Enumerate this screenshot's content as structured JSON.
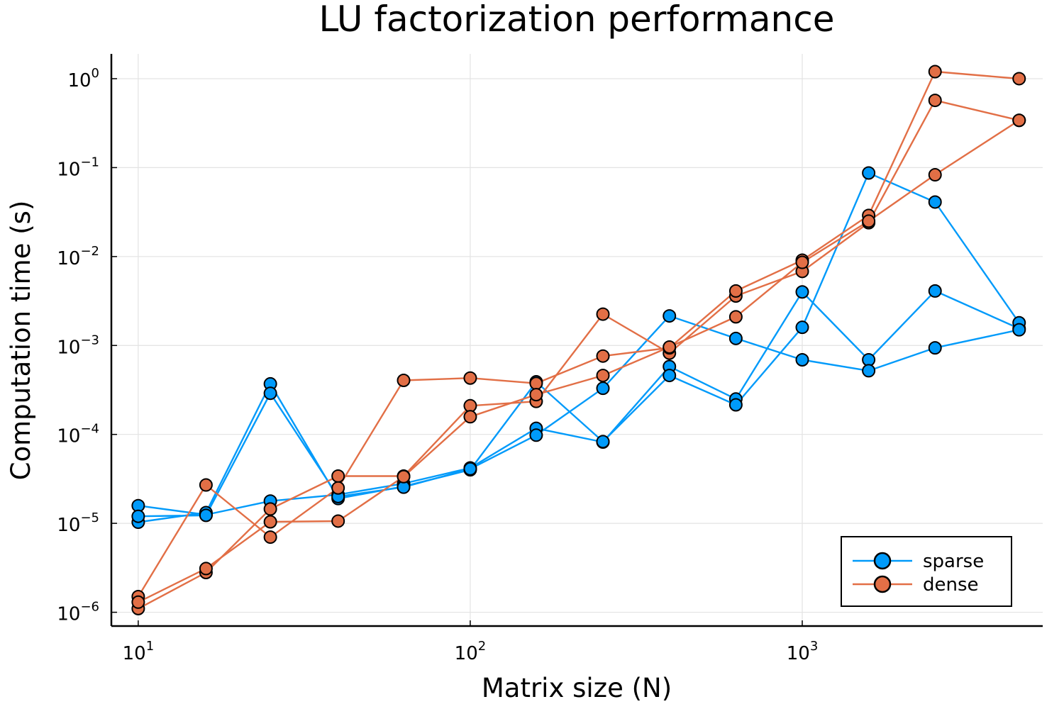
{
  "chart_data": {
    "type": "line",
    "title": "LU factorization performance",
    "xlabel": "Matrix size (N)",
    "ylabel": "Computation time (s)",
    "x_scale": "log10",
    "y_scale": "log10",
    "xlim": [
      8.3,
      5300
    ],
    "ylim": [
      7e-07,
      1.9
    ],
    "grid": true,
    "legend_position": "bottom-right",
    "x_ticks": [
      {
        "value": 10,
        "base": "10",
        "exp": "1"
      },
      {
        "value": 100,
        "base": "10",
        "exp": "2"
      },
      {
        "value": 1000,
        "base": "10",
        "exp": "3"
      }
    ],
    "y_ticks": [
      {
        "value": 1,
        "base": "10",
        "exp": "0"
      },
      {
        "value": 0.1,
        "base": "10",
        "exp": "−1"
      },
      {
        "value": 0.01,
        "base": "10",
        "exp": "−2"
      },
      {
        "value": 0.001,
        "base": "10",
        "exp": "−3"
      },
      {
        "value": 0.0001,
        "base": "10",
        "exp": "−4"
      },
      {
        "value": 1e-05,
        "base": "10",
        "exp": "−5"
      },
      {
        "value": 1e-06,
        "base": "10",
        "exp": "−6"
      }
    ],
    "series": [
      {
        "name": "sparse",
        "color": "#009AFA",
        "x": [
          10,
          16,
          25,
          40,
          63,
          100,
          158,
          251,
          398,
          631,
          1000,
          1585,
          2512,
          4500
        ],
        "y": [
          1.58e-05,
          1.25e-05,
          1.78e-05,
          2.1e-05,
          2.8e-05,
          4.2e-05,
          0.000117,
          8.2e-05,
          0.00058,
          0.00025,
          0.004,
          0.00069,
          0.0041,
          0.00155
        ]
      },
      {
        "name": "sparse",
        "color": "#009AFA",
        "x": [
          10,
          16,
          25,
          40,
          63,
          100,
          158,
          251,
          398,
          631,
          1000,
          1585,
          2512,
          4500
        ],
        "y": [
          1.03e-05,
          1.32e-05,
          0.00037,
          1.9e-05,
          2.6e-05,
          4e-05,
          0.00039,
          8.3e-05,
          0.00046,
          0.000215,
          0.0016,
          0.087,
          0.041,
          0.0018
        ]
      },
      {
        "name": "sparse",
        "color": "#009AFA",
        "x": [
          10,
          16,
          25,
          40,
          63,
          100,
          158,
          251,
          398,
          631,
          1000,
          1585,
          2512,
          4500
        ],
        "y": [
          1.2e-05,
          1.23e-05,
          0.00029,
          2e-05,
          2.55e-05,
          4.1e-05,
          9.8e-05,
          0.00033,
          0.00215,
          0.0012,
          0.00069,
          0.00052,
          0.00094,
          0.0015
        ]
      },
      {
        "name": "dense",
        "color": "#E26F46",
        "x": [
          10,
          16,
          25,
          40,
          63,
          100,
          158,
          251,
          398,
          631,
          1000,
          1585,
          2512,
          4500
        ],
        "y": [
          1.1e-06,
          2.8e-06,
          1.45e-05,
          3.4e-05,
          3.4e-05,
          0.00021,
          0.000235,
          0.00225,
          0.00082,
          0.0036,
          0.0068,
          0.024,
          0.57,
          0.34
        ]
      },
      {
        "name": "dense",
        "color": "#E26F46",
        "x": [
          10,
          16,
          25,
          40,
          63,
          100,
          158,
          251,
          398,
          631,
          1000,
          1585,
          2512,
          4500
        ],
        "y": [
          1.5e-06,
          2.7e-05,
          7e-06,
          2.5e-05,
          0.000405,
          0.00043,
          0.000375,
          0.00076,
          0.00094,
          0.0041,
          0.0091,
          0.029,
          1.2,
          1.0
        ]
      },
      {
        "name": "dense",
        "color": "#E26F46",
        "x": [
          10,
          16,
          25,
          40,
          63,
          100,
          158,
          251,
          398,
          631,
          1000,
          1585,
          2512,
          4500
        ],
        "y": [
          1.3e-06,
          3.1e-06,
          1.04e-05,
          1.06e-05,
          3.35e-05,
          0.000158,
          0.00028,
          0.00046,
          0.00096,
          0.0021,
          0.0086,
          0.025,
          0.083,
          0.34
        ]
      }
    ],
    "legend": [
      {
        "label": "sparse",
        "color": "#009AFA"
      },
      {
        "label": "dense",
        "color": "#E26F46"
      }
    ]
  }
}
